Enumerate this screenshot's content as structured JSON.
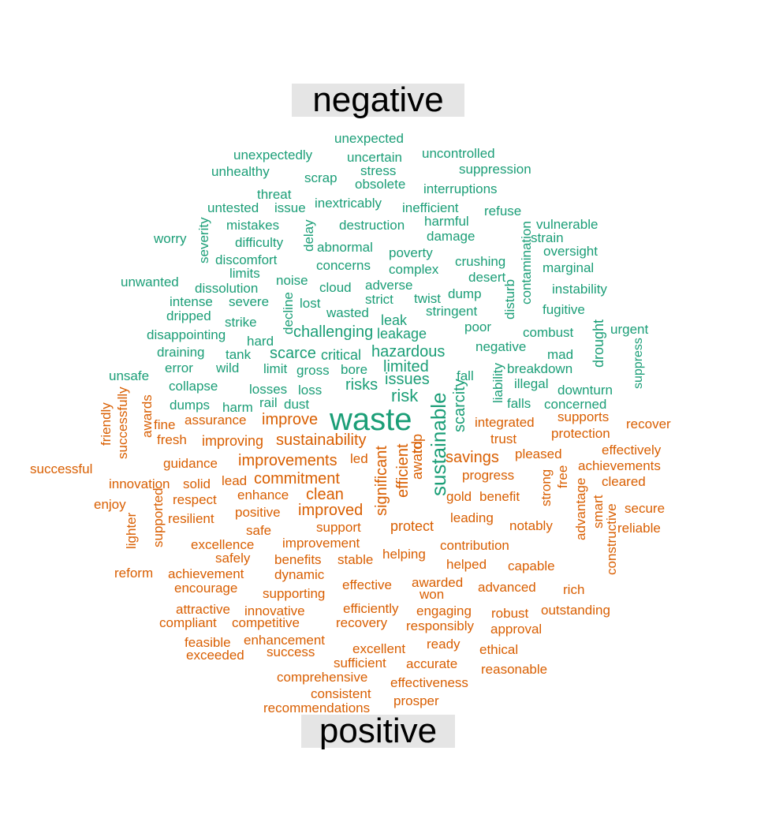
{
  "colors": {
    "negative": "#1b9e77",
    "positive": "#d95f02",
    "label_bg": "#e5e5e5"
  },
  "chart_data": {
    "type": "wordcloud",
    "title": "",
    "groups": [
      {
        "name": "negative",
        "words": [
          "waste",
          "sustainable",
          "risk",
          "issues",
          "risks",
          "limited",
          "scarcity",
          "hazardous",
          "challenging",
          "critical",
          "scarce",
          "leakage",
          "leak",
          "liability",
          "negative",
          "drought",
          "contamination",
          "disturb",
          "suppress",
          "breakdown",
          "unexpected",
          "unexpectedly",
          "uncertain",
          "uncontrolled",
          "unhealthy",
          "scrap",
          "stress",
          "suppression",
          "obsolete",
          "threat",
          "interruptions",
          "untested",
          "issue",
          "inextricably",
          "inefficient",
          "refuse",
          "harmful",
          "vulnerable",
          "mistakes",
          "destruction",
          "damage",
          "strain",
          "worry",
          "severity",
          "difficulty",
          "delay",
          "abnormal",
          "poverty",
          "oversight",
          "discomfort",
          "concerns",
          "crushing",
          "limits",
          "complex",
          "marginal",
          "desert",
          "unwanted",
          "dissolution",
          "noise",
          "cloud",
          "adverse",
          "instability",
          "intense",
          "severe",
          "lost",
          "strict",
          "twist",
          "dump",
          "decline",
          "fugitive",
          "dripped",
          "wasted",
          "stringent",
          "poor",
          "strike",
          "combust",
          "urgent",
          "disappointing",
          "hard",
          "draining",
          "tank",
          "mad",
          "unsafe",
          "error",
          "wild",
          "limit",
          "gross",
          "bore",
          "illegal",
          "collapse",
          "losses",
          "loss",
          "downturn",
          "dumps",
          "harm",
          "rail",
          "dust",
          "falls",
          "concerned",
          "fall"
        ]
      },
      {
        "name": "positive",
        "words": [
          "sustainability",
          "improvements",
          "improve",
          "commitment",
          "improved",
          "improving",
          "clean",
          "significant",
          "efficient",
          "award",
          "top",
          "savings",
          "successfully",
          "friendly",
          "awards",
          "fine",
          "assurance",
          "integrated",
          "supports",
          "recover",
          "fresh",
          "trust",
          "protection",
          "successful",
          "guidance",
          "led",
          "pleased",
          "effectively",
          "achievements",
          "innovation",
          "solid",
          "lead",
          "progress",
          "strong",
          "free",
          "cleared",
          "enjoy",
          "respect",
          "enhance",
          "gold",
          "benefit",
          "advantage",
          "secure",
          "positive",
          "supported",
          "resilient",
          "support",
          "protect",
          "leading",
          "smart",
          "reliable",
          "lighter",
          "safe",
          "notably",
          "excellence",
          "improvement",
          "contribution",
          "safely",
          "benefits",
          "stable",
          "helping",
          "constructive",
          "reform",
          "achievement",
          "dynamic",
          "helped",
          "capable",
          "encourage",
          "effective",
          "awarded",
          "advanced",
          "rich",
          "supporting",
          "won",
          "attractive",
          "innovative",
          "efficiently",
          "engaging",
          "robust",
          "outstanding",
          "compliant",
          "competitive",
          "recovery",
          "responsibly",
          "approval",
          "feasible",
          "enhancement",
          "ready",
          "exceeded",
          "success",
          "excellent",
          "ethical",
          "sufficient",
          "accurate",
          "comprehensive",
          "reasonable",
          "effectiveness",
          "consistent",
          "prosper",
          "recommendations"
        ]
      }
    ]
  },
  "labels": {
    "negative": "negative",
    "positive": "positive"
  }
}
